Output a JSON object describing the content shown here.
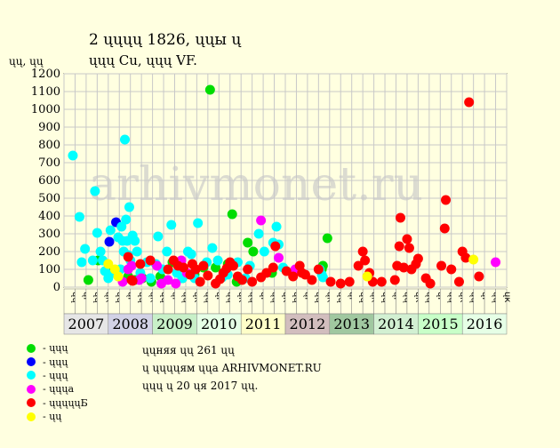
{
  "title_line1": "2 ųųųų 1826, ųųы ų",
  "title_line2": "ųųų Cu, ųųų VF.",
  "ylabel": "ųų, ųų",
  "watermark": "arhivmonet.ru",
  "years": [
    "2007",
    "2008",
    "2009",
    "2010",
    "2011",
    "2012",
    "2013",
    "2014",
    "2015",
    "2016"
  ],
  "year_colors": [
    "#E6E6E6",
    "#D2D2E6",
    "#C8F0C8",
    "#E6FFE6",
    "#FFFFC8",
    "#D2BEBE",
    "#A0C8A0",
    "#D2F0D2",
    "#C8FFC8",
    "#E6FFE6"
  ],
  "quarters": [
    "ųų",
    "ųг",
    "ųų",
    "ųк"
  ],
  "legend": [
    {
      "label": "- ųųų",
      "color": "#00DD00"
    },
    {
      "label": "- ųųų",
      "color": "#0000FF"
    },
    {
      "label": "- ųųų",
      "color": "#00FFFF"
    },
    {
      "label": "- ųųųа",
      "color": "#FF00FF"
    },
    {
      "label": "- ųųųųųБ",
      "color": "#FF0000"
    },
    {
      "label": "- ųų",
      "color": "#FFFF00"
    }
  ],
  "info": {
    "line1": "ųųняя ųų 261 ųų",
    "line2": "ų ųųųųям ųųа ARHIVMONET.RU",
    "line3": "ųųų ų 20 ųя 2017 ųų."
  },
  "chart_data": {
    "type": "scatter",
    "ylim": [
      0,
      1200
    ],
    "yticks": [
      0,
      100,
      200,
      300,
      400,
      500,
      600,
      700,
      800,
      900,
      1000,
      1100,
      1200
    ],
    "x_unit": "quarter index from 2007 Q1 (0) to 2016 Q4 (39)",
    "grid": true,
    "series": [
      {
        "color": "#00DD00",
        "points": [
          [
            1.7,
            40
          ],
          [
            2.6,
            150
          ],
          [
            3.8,
            80
          ],
          [
            5.3,
            60
          ],
          [
            5.9,
            40
          ],
          [
            6.6,
            50
          ],
          [
            7.4,
            30
          ],
          [
            8.2,
            60
          ],
          [
            9.3,
            140
          ],
          [
            10.2,
            50
          ],
          [
            11.3,
            70
          ],
          [
            12.1,
            110
          ],
          [
            12.7,
            1110
          ],
          [
            13.2,
            110
          ],
          [
            14.3,
            130
          ],
          [
            14.7,
            410
          ],
          [
            15.1,
            30
          ],
          [
            16.1,
            250
          ],
          [
            16.6,
            200
          ],
          [
            18.3,
            80
          ],
          [
            23.3,
            275
          ],
          [
            22.8,
            100
          ],
          [
            22.9,
            120
          ]
        ]
      },
      {
        "color": "#0000FF",
        "points": [
          [
            3.6,
            255
          ],
          [
            4.2,
            365
          ]
        ]
      },
      {
        "color": "#00FFFF",
        "points": [
          [
            0.3,
            740
          ],
          [
            0.9,
            395
          ],
          [
            1.1,
            140
          ],
          [
            1.4,
            215
          ],
          [
            2.1,
            150
          ],
          [
            2.3,
            540
          ],
          [
            2.5,
            305
          ],
          [
            2.8,
            200
          ],
          [
            3.0,
            150
          ],
          [
            3.2,
            90
          ],
          [
            3.5,
            50
          ],
          [
            3.7,
            320
          ],
          [
            4.0,
            80
          ],
          [
            4.4,
            280
          ],
          [
            4.6,
            100
          ],
          [
            4.7,
            340
          ],
          [
            4.8,
            260
          ],
          [
            4.9,
            200
          ],
          [
            5.0,
            830
          ],
          [
            5.1,
            380
          ],
          [
            5.2,
            260
          ],
          [
            5.3,
            180
          ],
          [
            5.4,
            450
          ],
          [
            5.5,
            150
          ],
          [
            5.7,
            290
          ],
          [
            5.9,
            260
          ],
          [
            6.1,
            200
          ],
          [
            6.4,
            80
          ],
          [
            7.0,
            140
          ],
          [
            7.3,
            50
          ],
          [
            7.8,
            130
          ],
          [
            8.0,
            285
          ],
          [
            8.4,
            100
          ],
          [
            8.8,
            200
          ],
          [
            9.2,
            350
          ],
          [
            9.7,
            80
          ],
          [
            10.2,
            50
          ],
          [
            10.7,
            200
          ],
          [
            11.0,
            185
          ],
          [
            11.3,
            50
          ],
          [
            11.6,
            360
          ],
          [
            12.4,
            140
          ],
          [
            12.9,
            220
          ],
          [
            13.4,
            150
          ],
          [
            13.8,
            55
          ],
          [
            14.3,
            70
          ],
          [
            15.2,
            140
          ],
          [
            15.9,
            50
          ],
          [
            16.3,
            120
          ],
          [
            17.1,
            300
          ],
          [
            17.6,
            200
          ],
          [
            18.4,
            250
          ],
          [
            18.7,
            340
          ],
          [
            18.9,
            240
          ],
          [
            19.3,
            110
          ],
          [
            22.6,
            100
          ],
          [
            22.8,
            70
          ],
          [
            22.9,
            55
          ]
        ]
      },
      {
        "color": "#FF00FF",
        "points": [
          [
            4.8,
            30
          ],
          [
            5.3,
            100
          ],
          [
            5.6,
            120
          ],
          [
            6.3,
            40
          ],
          [
            6.5,
            50
          ],
          [
            7.9,
            120
          ],
          [
            8.3,
            20
          ],
          [
            8.9,
            40
          ],
          [
            9.6,
            20
          ],
          [
            10.1,
            150
          ],
          [
            10.6,
            80
          ],
          [
            17.3,
            375
          ],
          [
            18.9,
            165
          ],
          [
            20.4,
            100
          ],
          [
            38.5,
            140
          ]
        ]
      },
      {
        "color": "#FF0000",
        "points": [
          [
            5.3,
            170
          ],
          [
            5.6,
            40
          ],
          [
            5.7,
            35
          ],
          [
            6.4,
            130
          ],
          [
            7.3,
            150
          ],
          [
            8.9,
            100
          ],
          [
            9.4,
            150
          ],
          [
            9.8,
            120
          ],
          [
            10.3,
            110
          ],
          [
            10.9,
            70
          ],
          [
            11.1,
            130
          ],
          [
            11.4,
            100
          ],
          [
            11.8,
            30
          ],
          [
            12.1,
            120
          ],
          [
            12.5,
            65
          ],
          [
            13.2,
            20
          ],
          [
            13.6,
            45
          ],
          [
            13.9,
            80
          ],
          [
            14.2,
            105
          ],
          [
            14.5,
            140
          ],
          [
            14.8,
            120
          ],
          [
            15.2,
            60
          ],
          [
            15.6,
            40
          ],
          [
            16.1,
            100
          ],
          [
            16.5,
            30
          ],
          [
            17.3,
            55
          ],
          [
            17.8,
            80
          ],
          [
            18.4,
            110
          ],
          [
            18.6,
            230
          ],
          [
            19.6,
            90
          ],
          [
            20.2,
            60
          ],
          [
            20.8,
            120
          ],
          [
            21.0,
            80
          ],
          [
            21.3,
            70
          ],
          [
            21.9,
            40
          ],
          [
            22.5,
            100
          ],
          [
            23.6,
            30
          ],
          [
            24.5,
            20
          ],
          [
            25.3,
            30
          ],
          [
            26.1,
            120
          ],
          [
            26.5,
            200
          ],
          [
            26.7,
            150
          ],
          [
            27.1,
            80
          ],
          [
            27.4,
            30
          ],
          [
            28.2,
            30
          ],
          [
            29.4,
            40
          ],
          [
            29.6,
            120
          ],
          [
            29.8,
            230
          ],
          [
            29.9,
            390
          ],
          [
            30.2,
            110
          ],
          [
            30.5,
            270
          ],
          [
            30.7,
            220
          ],
          [
            30.9,
            100
          ],
          [
            31.3,
            130
          ],
          [
            31.5,
            160
          ],
          [
            32.2,
            50
          ],
          [
            32.6,
            20
          ],
          [
            33.6,
            120
          ],
          [
            33.9,
            330
          ],
          [
            34.0,
            490
          ],
          [
            34.5,
            100
          ],
          [
            35.2,
            30
          ],
          [
            35.5,
            200
          ],
          [
            35.8,
            165
          ],
          [
            36.1,
            1040
          ],
          [
            37.0,
            60
          ]
        ]
      },
      {
        "color": "#FFFF00",
        "points": [
          [
            3.5,
            130
          ],
          [
            4.1,
            100
          ],
          [
            4.4,
            60
          ],
          [
            26.9,
            60
          ],
          [
            36.5,
            155
          ]
        ]
      }
    ]
  }
}
